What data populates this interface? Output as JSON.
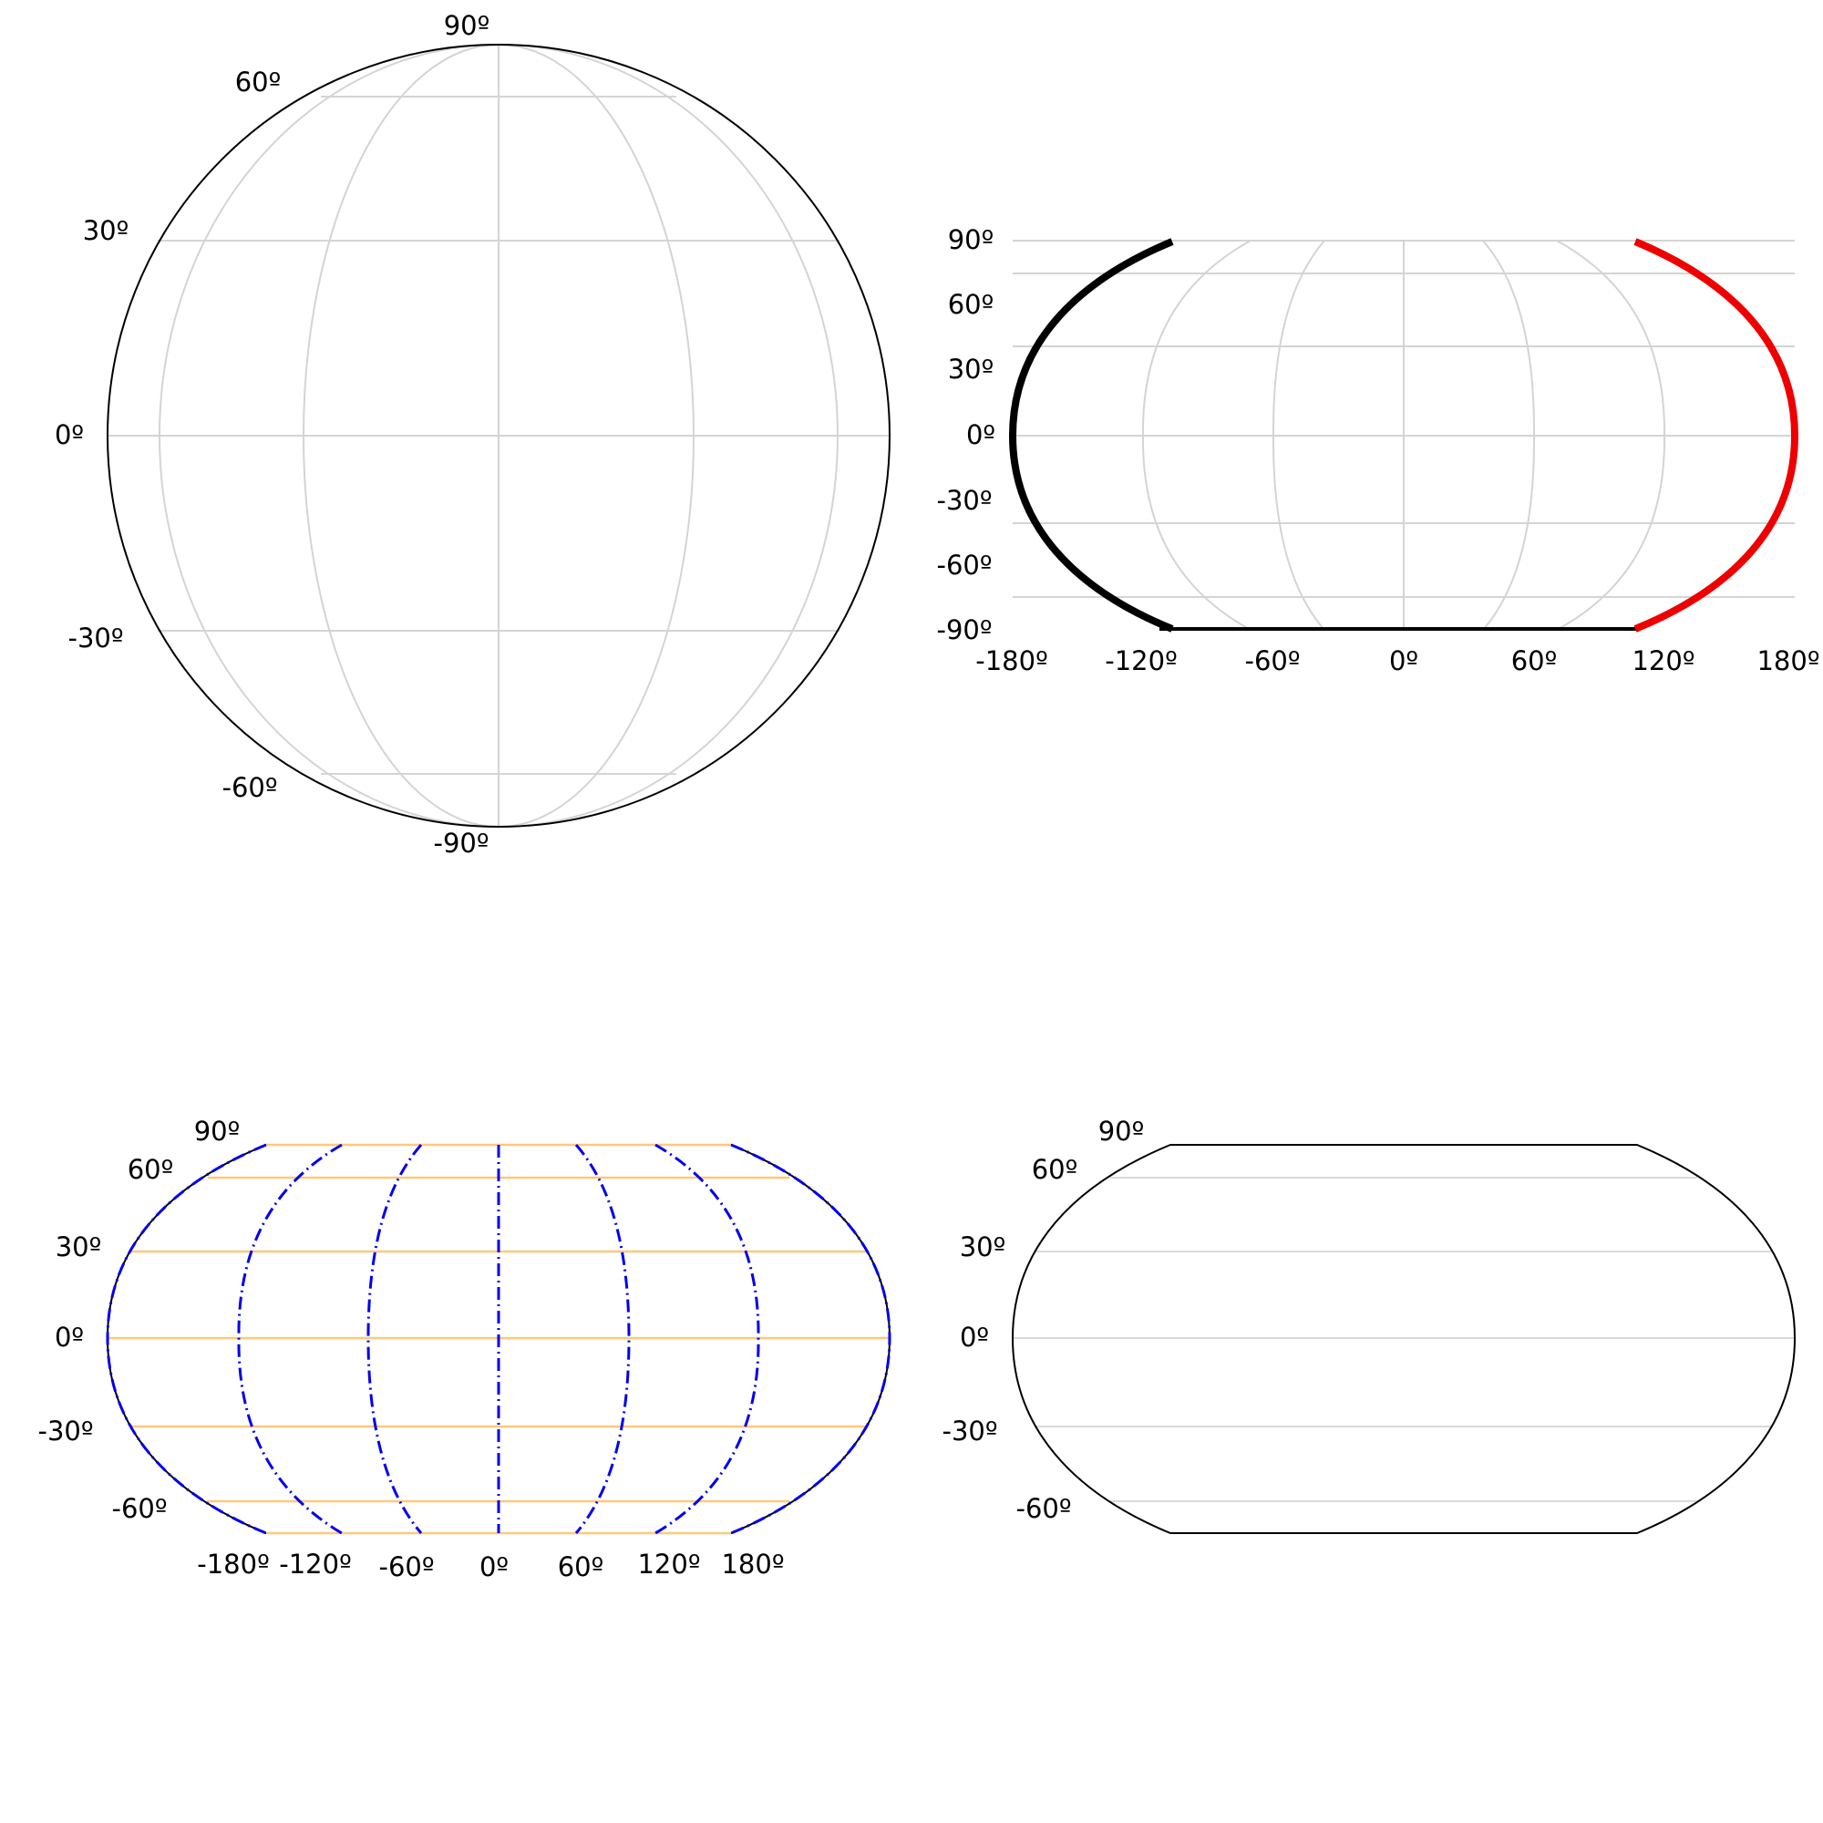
{
  "panels": [
    {
      "id": "globe",
      "lat_labels": [
        "90º",
        "60º",
        "30º",
        "0º",
        "-30º",
        "-60º",
        "-90º"
      ],
      "lon_labels": [],
      "colors": {
        "outline": "#000000",
        "grid": "#d4d4d4"
      }
    },
    {
      "id": "map-right",
      "lat_labels": [
        "90º",
        "60º",
        "30º",
        "0º",
        "-30º",
        "-60º",
        "-90º"
      ],
      "lon_labels": [
        "-180º",
        "-120º",
        "-60º",
        "0º",
        "60º",
        "120º",
        "180º"
      ],
      "colors": {
        "left_edge": "#000000",
        "right_edge": "#ee0000",
        "grid": "#d4d4d4"
      }
    },
    {
      "id": "map-colored-grid",
      "lat_labels": [
        "90º",
        "60º",
        "30º",
        "0º",
        "-30º",
        "-60º"
      ],
      "lon_labels": [
        "-180º",
        "-120º",
        "-60º",
        "0º",
        "60º",
        "120º",
        "180º"
      ],
      "colors": {
        "parallels": "#ffc87a",
        "meridians": "#0000ee",
        "outline": "#000000"
      }
    },
    {
      "id": "map-parallels-only",
      "lat_labels": [
        "90º",
        "60º",
        "30º",
        "0º",
        "-30º",
        "-60º"
      ],
      "lon_labels": [],
      "colors": {
        "outline": "#000000",
        "grid": "#d9d9d9"
      }
    }
  ]
}
